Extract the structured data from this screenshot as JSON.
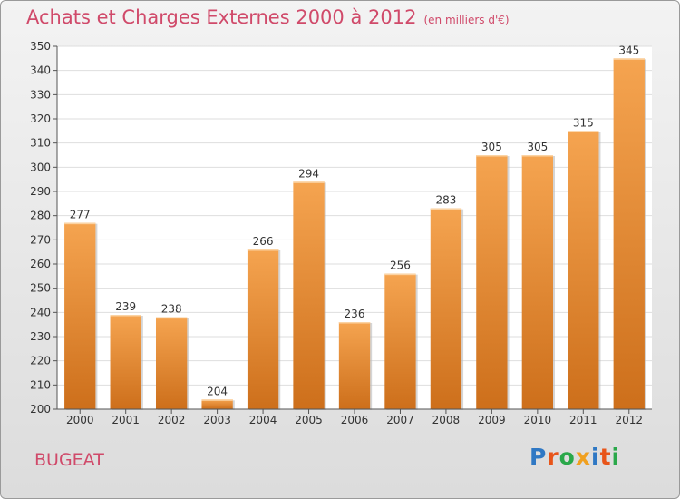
{
  "header": {
    "title": "Achats et Charges Externes 2000 à 2012",
    "unit": "(en milliers d'€)"
  },
  "footer": {
    "place": "BUGEAT",
    "brand_letters": [
      "P",
      "r",
      "o",
      "x",
      "i",
      "t",
      "i"
    ],
    "brand_colors": [
      "#2f78c4",
      "#e8551a",
      "#2aa84a",
      "#f0a020",
      "#2f78c4",
      "#e8551a",
      "#2aa84a"
    ]
  },
  "colors": {
    "bar_top": "#f5a450",
    "bar_bottom": "#cd6f1b",
    "title": "#d04a6a"
  },
  "chart_data": {
    "type": "bar",
    "categories": [
      "2000",
      "2001",
      "2002",
      "2003",
      "2004",
      "2005",
      "2006",
      "2007",
      "2008",
      "2009",
      "2010",
      "2011",
      "2012"
    ],
    "values": [
      277,
      239,
      238,
      204,
      266,
      294,
      236,
      256,
      283,
      305,
      305,
      315,
      345
    ],
    "ylim": [
      200,
      350
    ],
    "yticks": [
      200,
      210,
      220,
      230,
      240,
      250,
      260,
      270,
      280,
      290,
      300,
      310,
      320,
      330,
      340,
      350
    ],
    "grid": true,
    "data_labels": true
  }
}
